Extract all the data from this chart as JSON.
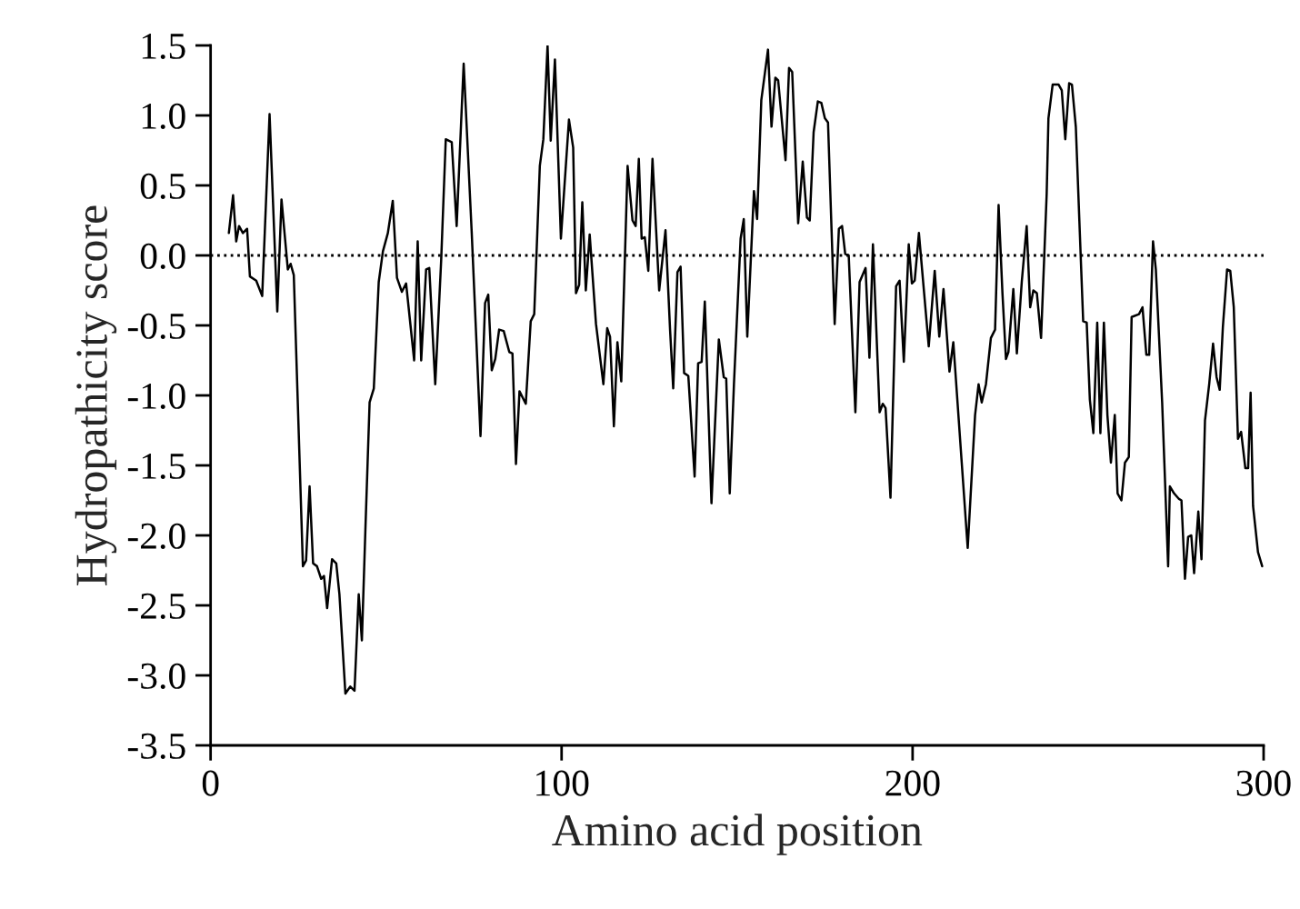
{
  "chart_data": {
    "type": "line",
    "xlabel": "Amino acid position",
    "ylabel": "Hydropathicity score",
    "xlim": [
      0,
      300
    ],
    "xticks": [
      0,
      100,
      200,
      300
    ],
    "ylim": [
      -3.5,
      1.5
    ],
    "yticks": [
      1.5,
      {
        "value": 1,
        "label": "1.0"
      },
      0.5,
      {
        "value": 0,
        "label": "0.0"
      },
      -0.5,
      {
        "value": -1,
        "label": "-1.0"
      },
      -1.5,
      {
        "value": -2,
        "label": "-2.0"
      },
      -2.5,
      {
        "value": -3,
        "label": "-3.0"
      },
      -3.5
    ],
    "grid": false,
    "legend": false,
    "marker": "none",
    "line_style": "solid",
    "ref_lines": [
      {
        "axis": "y",
        "value": 0,
        "line_style": "dotted",
        "color": "#000000"
      }
    ],
    "series": [
      {
        "color": "#000000",
        "x": [
          5.2,
          6.4,
          7.3,
          8.1,
          9.2,
          10.4,
          11.2,
          13.0,
          14.7,
          16.8,
          19.0,
          20.2,
          22.0,
          22.8,
          23.7,
          26.3,
          27.2,
          28.2,
          29.2,
          30.3,
          31.5,
          32.3,
          33.2,
          34.6,
          35.8,
          36.7,
          38.4,
          39.8,
          41.0,
          42.2,
          43.1,
          44.1,
          45.3,
          46.5,
          47.9,
          49.1,
          50.5,
          51.9,
          53.1,
          54.5,
          55.7,
          58.0,
          59.0,
          60.0,
          61.4,
          62.3,
          64.0,
          65.7,
          67.0,
          68.7,
          70.1,
          72.1,
          74.4,
          76.9,
          78.2,
          79.1,
          80.1,
          81.1,
          82.2,
          83.5,
          85.1,
          86.0,
          87.0,
          88.0,
          89.8,
          91.2,
          92.2,
          93.8,
          94.8,
          96.0,
          96.9,
          98.1,
          99.8,
          102.1,
          103.3,
          104.1,
          105.0,
          105.9,
          106.9,
          108.0,
          109.8,
          111.9,
          113.0,
          113.8,
          114.9,
          115.9,
          117.0,
          118.8,
          120.2,
          121.1,
          122.0,
          122.8,
          123.7,
          124.7,
          125.9,
          127.8,
          129.6,
          130.9,
          131.8,
          133.0,
          133.9,
          134.9,
          136.1,
          137.9,
          138.9,
          139.9,
          140.8,
          142.7,
          144.8,
          146.2,
          146.9,
          147.9,
          149.1,
          151.0,
          151.9,
          152.9,
          154.8,
          155.7,
          156.9,
          158.8,
          159.8,
          160.9,
          161.7,
          163.8,
          164.8,
          165.7,
          167.4,
          168.7,
          169.9,
          170.7,
          171.8,
          173.0,
          174.0,
          175.0,
          175.9,
          177.8,
          179.0,
          179.9,
          180.8,
          181.8,
          183.7,
          184.9,
          186.6,
          187.7,
          188.7,
          190.6,
          191.5,
          192.3,
          193.7,
          195.3,
          196.3,
          197.5,
          198.9,
          199.8,
          200.6,
          201.8,
          204.6,
          206.3,
          207.6,
          208.8,
          210.5,
          211.6,
          215.7,
          217.8,
          218.8,
          219.7,
          220.9,
          222.3,
          223.5,
          224.5,
          225.6,
          226.6,
          227.3,
          228.7,
          229.7,
          231.1,
          232.5,
          233.5,
          234.4,
          235.4,
          236.6,
          238.2,
          238.7,
          239.9,
          241.6,
          242.5,
          243.5,
          244.6,
          245.4,
          246.5,
          247.9,
          248.6,
          249.6,
          250.5,
          251.5,
          252.6,
          253.5,
          254.5,
          255.5,
          256.5,
          257.6,
          258.4,
          259.5,
          260.5,
          261.6,
          262.4,
          264.5,
          265.5,
          266.6,
          267.4,
          268.5,
          269.3,
          271.1,
          272.8,
          273.3,
          274.5,
          275.9,
          276.6,
          277.6,
          278.5,
          279.4,
          280.2,
          281.4,
          282.3,
          283.3,
          284.5,
          285.6,
          286.6,
          287.5,
          288.4,
          289.6,
          290.5,
          291.5,
          292.7,
          293.6,
          294.8,
          295.6,
          296.3,
          297.0,
          298.4,
          299.6
        ],
        "values": [
          0.16,
          0.43,
          0.1,
          0.21,
          0.16,
          0.19,
          -0.15,
          -0.18,
          -0.29,
          1.01,
          -0.4,
          0.4,
          -0.1,
          -0.06,
          -0.14,
          -2.22,
          -2.18,
          -1.65,
          -2.2,
          -2.22,
          -2.31,
          -2.29,
          -2.52,
          -2.17,
          -2.2,
          -2.42,
          -3.13,
          -3.08,
          -3.11,
          -2.42,
          -2.75,
          -1.96,
          -1.05,
          -0.95,
          -0.19,
          0.03,
          0.16,
          0.39,
          -0.16,
          -0.26,
          -0.2,
          -0.75,
          0.1,
          -0.75,
          -0.1,
          -0.09,
          -0.92,
          -0.03,
          0.83,
          0.81,
          0.21,
          1.37,
          0.16,
          -1.29,
          -0.34,
          -0.28,
          -0.82,
          -0.74,
          -0.53,
          -0.54,
          -0.69,
          -0.7,
          -1.49,
          -0.97,
          -1.06,
          -0.47,
          -0.42,
          0.64,
          0.83,
          1.5,
          0.82,
          1.4,
          0.12,
          0.97,
          0.77,
          -0.27,
          -0.21,
          0.38,
          -0.25,
          0.15,
          -0.49,
          -0.92,
          -0.52,
          -0.58,
          -1.22,
          -0.62,
          -0.9,
          0.64,
          0.25,
          0.21,
          0.69,
          0.12,
          0.13,
          -0.11,
          0.69,
          -0.25,
          0.18,
          -0.53,
          -0.95,
          -0.12,
          -0.08,
          -0.84,
          -0.86,
          -1.58,
          -0.77,
          -0.76,
          -0.33,
          -1.77,
          -0.6,
          -0.87,
          -0.88,
          -1.7,
          -0.92,
          0.12,
          0.26,
          -0.58,
          0.46,
          0.26,
          1.11,
          1.47,
          0.92,
          1.27,
          1.25,
          0.68,
          1.34,
          1.31,
          0.23,
          0.67,
          0.27,
          0.25,
          0.88,
          1.1,
          1.09,
          0.98,
          0.95,
          -0.49,
          0.19,
          0.21,
          0.01,
          0.0,
          -1.12,
          -0.19,
          -0.09,
          -0.73,
          0.08,
          -1.12,
          -1.06,
          -1.09,
          -1.73,
          -0.22,
          -0.18,
          -0.76,
          0.08,
          -0.2,
          -0.18,
          0.16,
          -0.65,
          -0.11,
          -0.58,
          -0.24,
          -0.83,
          -0.62,
          -2.09,
          -1.14,
          -0.92,
          -1.05,
          -0.92,
          -0.59,
          -0.53,
          0.36,
          -0.27,
          -0.74,
          -0.69,
          -0.24,
          -0.7,
          -0.19,
          0.21,
          -0.37,
          -0.25,
          -0.27,
          -0.59,
          0.44,
          0.98,
          1.22,
          1.22,
          1.18,
          0.83,
          1.23,
          1.22,
          0.92,
          -0.01,
          -0.47,
          -0.48,
          -1.03,
          -1.27,
          -0.48,
          -1.27,
          -0.48,
          -1.14,
          -1.48,
          -1.14,
          -1.7,
          -1.75,
          -1.48,
          -1.44,
          -0.44,
          -0.42,
          -0.37,
          -0.71,
          -0.71,
          0.1,
          -0.1,
          -1.05,
          -2.22,
          -1.65,
          -1.7,
          -1.74,
          -1.75,
          -2.31,
          -2.01,
          -2.0,
          -2.27,
          -1.83,
          -2.17,
          -1.18,
          -0.92,
          -0.63,
          -0.87,
          -0.96,
          -0.51,
          -0.1,
          -0.11,
          -0.37,
          -1.31,
          -1.26,
          -1.52,
          -1.52,
          -0.98,
          -1.79,
          -2.12,
          -2.22
        ]
      }
    ]
  }
}
